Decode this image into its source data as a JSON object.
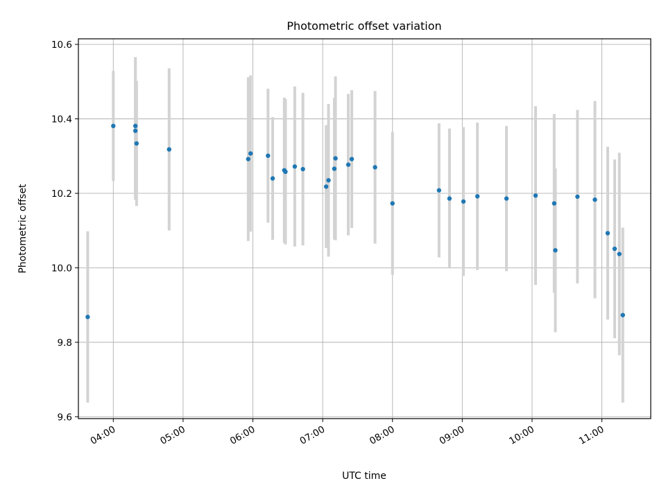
{
  "chart_data": {
    "type": "scatter",
    "title": "Photometric offset variation",
    "xlabel": "UTC time",
    "ylabel": "Photometric offset",
    "x_unit": "UTC time (HH:MM)",
    "xlim": [
      "03:30",
      "11:42"
    ],
    "ylim": [
      9.595,
      10.615
    ],
    "x_ticks": [
      "04:00",
      "05:00",
      "06:00",
      "07:00",
      "08:00",
      "09:00",
      "10:00",
      "11:00"
    ],
    "y_ticks": [
      "9.6",
      "9.8",
      "10.0",
      "10.2",
      "10.4",
      "10.6"
    ],
    "y_tick_values": [
      9.6,
      9.8,
      10.0,
      10.2,
      10.4,
      10.6
    ],
    "grid": true,
    "marker_color": "#1f77b4",
    "errorbar_color": "#d3d3d3",
    "points": [
      {
        "x": "03:38",
        "y": 9.868,
        "err": 0.23
      },
      {
        "x": "04:00",
        "y": 10.381,
        "err": 0.148
      },
      {
        "x": "04:19",
        "y": 10.381,
        "err": 0.185
      },
      {
        "x": "04:19",
        "y": 10.368,
        "err": 0.185
      },
      {
        "x": "04:20",
        "y": 10.334,
        "err": 0.168
      },
      {
        "x": "04:48",
        "y": 10.318,
        "err": 0.218
      },
      {
        "x": "05:56",
        "y": 10.292,
        "err": 0.22
      },
      {
        "x": "05:58",
        "y": 10.307,
        "err": 0.21
      },
      {
        "x": "06:13",
        "y": 10.301,
        "err": 0.18
      },
      {
        "x": "06:17",
        "y": 10.24,
        "err": 0.165
      },
      {
        "x": "06:27",
        "y": 10.262,
        "err": 0.195
      },
      {
        "x": "06:28",
        "y": 10.258,
        "err": 0.195
      },
      {
        "x": "06:36",
        "y": 10.272,
        "err": 0.215
      },
      {
        "x": "06:43",
        "y": 10.265,
        "err": 0.205
      },
      {
        "x": "07:03",
        "y": 10.218,
        "err": 0.165
      },
      {
        "x": "07:05",
        "y": 10.235,
        "err": 0.205
      },
      {
        "x": "07:10",
        "y": 10.266,
        "err": 0.19
      },
      {
        "x": "07:11",
        "y": 10.294,
        "err": 0.22
      },
      {
        "x": "07:22",
        "y": 10.277,
        "err": 0.19
      },
      {
        "x": "07:25",
        "y": 10.292,
        "err": 0.185
      },
      {
        "x": "07:45",
        "y": 10.27,
        "err": 0.205
      },
      {
        "x": "08:00",
        "y": 10.173,
        "err": 0.192
      },
      {
        "x": "08:40",
        "y": 10.208,
        "err": 0.18
      },
      {
        "x": "08:49",
        "y": 10.186,
        "err": 0.188
      },
      {
        "x": "09:01",
        "y": 10.178,
        "err": 0.2
      },
      {
        "x": "09:13",
        "y": 10.192,
        "err": 0.198
      },
      {
        "x": "09:38",
        "y": 10.186,
        "err": 0.195
      },
      {
        "x": "10:03",
        "y": 10.194,
        "err": 0.24
      },
      {
        "x": "10:19",
        "y": 10.173,
        "err": 0.24
      },
      {
        "x": "10:20",
        "y": 10.047,
        "err": 0.22
      },
      {
        "x": "10:39",
        "y": 10.191,
        "err": 0.233
      },
      {
        "x": "10:54",
        "y": 10.183,
        "err": 0.265
      },
      {
        "x": "11:05",
        "y": 10.093,
        "err": 0.232
      },
      {
        "x": "11:11",
        "y": 10.051,
        "err": 0.24
      },
      {
        "x": "11:15",
        "y": 10.037,
        "err": 0.272
      },
      {
        "x": "11:18",
        "y": 9.873,
        "err": 0.235
      }
    ]
  }
}
